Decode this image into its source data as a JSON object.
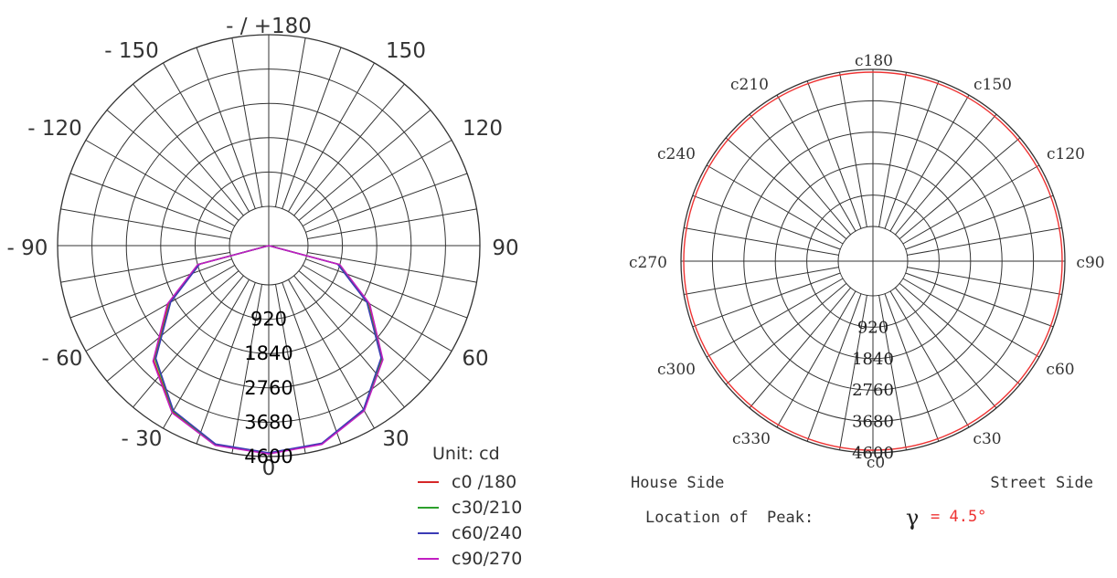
{
  "chart_data": [
    {
      "type": "polar",
      "angle_labels": [
        {
          "deg": 180,
          "text": "- / +180"
        },
        {
          "deg": -150,
          "text": "- 150"
        },
        {
          "deg": 150,
          "text": "150"
        },
        {
          "deg": -120,
          "text": "- 120"
        },
        {
          "deg": 120,
          "text": "120"
        },
        {
          "deg": -90,
          "text": "- 90"
        },
        {
          "deg": 90,
          "text": "90"
        },
        {
          "deg": -60,
          "text": "- 60"
        },
        {
          "deg": 60,
          "text": "60"
        },
        {
          "deg": -30,
          "text": "- 30"
        },
        {
          "deg": 30,
          "text": "30"
        },
        {
          "deg": 0,
          "text": "0"
        }
      ],
      "radial_ticks": [
        "920",
        "1840",
        "2760",
        "3680",
        "4600"
      ],
      "rmax": 4600,
      "unit_label": "Unit: cd",
      "legend": [
        {
          "label": "c0 /180",
          "color": "#d62728"
        },
        {
          "label": "c30/210",
          "color": "#2ca02c"
        },
        {
          "label": "c60/240",
          "color": "#3b3bb5"
        },
        {
          "label": "c90/270",
          "color": "#c21ec2"
        }
      ],
      "series": [
        {
          "name": "c0 /180",
          "color": "#d62728",
          "gamma": [
            -90,
            -75,
            -60,
            -45,
            -30,
            -15,
            0,
            15,
            30,
            45,
            60,
            75,
            90
          ],
          "values": [
            0,
            900,
            2050,
            3300,
            4100,
            4480,
            4520,
            4450,
            4050,
            3250,
            2050,
            900,
            0
          ]
        },
        {
          "name": "c30/210",
          "color": "#2ca02c",
          "gamma": [
            -90,
            -75,
            -60,
            -45,
            -30,
            -15,
            0,
            15,
            30,
            45,
            60,
            75,
            90
          ],
          "values": [
            0,
            880,
            2000,
            3250,
            4070,
            4460,
            4510,
            4440,
            4030,
            3220,
            2000,
            870,
            0
          ]
        },
        {
          "name": "c60/240",
          "color": "#3b3bb5",
          "gamma": [
            -90,
            -75,
            -60,
            -45,
            -30,
            -15,
            0,
            15,
            30,
            45,
            60,
            75,
            90
          ],
          "values": [
            0,
            860,
            1980,
            3220,
            4050,
            4450,
            4500,
            4430,
            4020,
            3200,
            1980,
            850,
            0
          ]
        },
        {
          "name": "c90/270",
          "color": "#c21ec2",
          "gamma": [
            -90,
            -75,
            -60,
            -45,
            -30,
            -15,
            0,
            15,
            30,
            45,
            60,
            75,
            90
          ],
          "values": [
            0,
            920,
            2080,
            3330,
            4120,
            4490,
            4530,
            4460,
            4060,
            3270,
            2070,
            920,
            0
          ]
        }
      ]
    },
    {
      "type": "polar",
      "angle_labels": [
        {
          "deg": 0,
          "text": "c0"
        },
        {
          "deg": 30,
          "text": "c30"
        },
        {
          "deg": 60,
          "text": "c60"
        },
        {
          "deg": 90,
          "text": "c90"
        },
        {
          "deg": 120,
          "text": "c120"
        },
        {
          "deg": 150,
          "text": "c150"
        },
        {
          "deg": 180,
          "text": "c180"
        },
        {
          "deg": 210,
          "text": "c210"
        },
        {
          "deg": 240,
          "text": "c240"
        },
        {
          "deg": 270,
          "text": "c270"
        },
        {
          "deg": 300,
          "text": "c300"
        },
        {
          "deg": 330,
          "text": "c330"
        }
      ],
      "radial_ticks": [
        "920",
        "1840",
        "2760",
        "3680",
        "4600"
      ],
      "rmax": 4600,
      "series": [
        {
          "name": "",
          "color": "#ee3333",
          "value": 4520
        }
      ],
      "house_side": "House Side",
      "street_side": "Street Side",
      "peak_label": "Location of  Peak:",
      "peak_symbol": "γ",
      "peak_value": "= 4.5°"
    }
  ]
}
